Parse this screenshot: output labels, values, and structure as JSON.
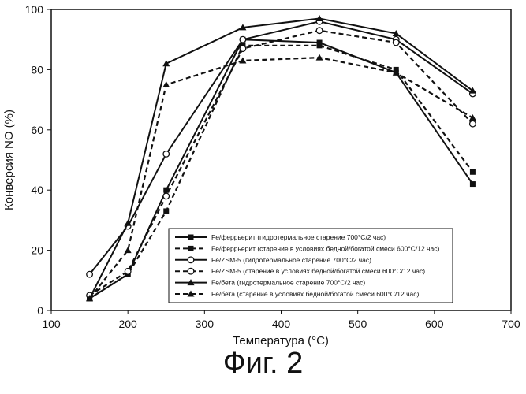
{
  "chart_data": {
    "type": "line",
    "xlabel": "Температура (°С)",
    "ylabel": "Конверсия NO (%)",
    "xlim": [
      100,
      700
    ],
    "ylim": [
      0,
      100
    ],
    "x_ticks": [
      100,
      200,
      300,
      400,
      500,
      600,
      700
    ],
    "y_ticks": [
      0,
      20,
      40,
      60,
      80,
      100
    ],
    "grid": false,
    "legend_position": "bottom-right",
    "series": [
      {
        "name": "Fe/феррьерит (гидротермальное старение 700°С/2 час)",
        "x": [
          150,
          200,
          250,
          350,
          450,
          550,
          650
        ],
        "values": [
          4,
          12,
          40,
          90,
          89,
          79,
          42
        ],
        "marker": "square",
        "dash": "solid",
        "color": "#111111"
      },
      {
        "name": "Fe/феррьерит (старение в условиях бедной/богатой смеси 600°С/12 час)",
        "x": [
          150,
          200,
          250,
          350,
          450,
          550,
          650
        ],
        "values": [
          4,
          12,
          33,
          88,
          88,
          80,
          46
        ],
        "marker": "square",
        "dash": "dashed",
        "color": "#111111"
      },
      {
        "name": "Fe/ZSM-5 (гидротермальное старение 700°С/2 час)",
        "x": [
          150,
          200,
          250,
          350,
          450,
          550,
          650
        ],
        "values": [
          12,
          28,
          52,
          90,
          96,
          90,
          72
        ],
        "marker": "circle-open",
        "dash": "solid",
        "color": "#111111"
      },
      {
        "name": "Fe/ZSM-5 (старение в условиях бедной/богатой смеси 600°С/12 час)",
        "x": [
          150,
          200,
          250,
          350,
          450,
          550,
          650
        ],
        "values": [
          5,
          13,
          38,
          87,
          93,
          89,
          62
        ],
        "marker": "circle-open",
        "dash": "dashed",
        "color": "#111111"
      },
      {
        "name": "Fe/бета (гидротермальное старение 700°С/2 час)",
        "x": [
          150,
          200,
          250,
          350,
          450,
          550,
          650
        ],
        "values": [
          4,
          29,
          82,
          94,
          97,
          92,
          73
        ],
        "marker": "triangle",
        "dash": "solid",
        "color": "#111111"
      },
      {
        "name": "Fe/бета (старение в условиях бедной/богатой смеси 600°С/12 час)",
        "x": [
          150,
          200,
          250,
          350,
          450,
          550,
          650
        ],
        "values": [
          4,
          20,
          75,
          83,
          84,
          79,
          64
        ],
        "marker": "triangle",
        "dash": "dashed",
        "color": "#111111"
      }
    ]
  },
  "caption": "Фиг. 2"
}
